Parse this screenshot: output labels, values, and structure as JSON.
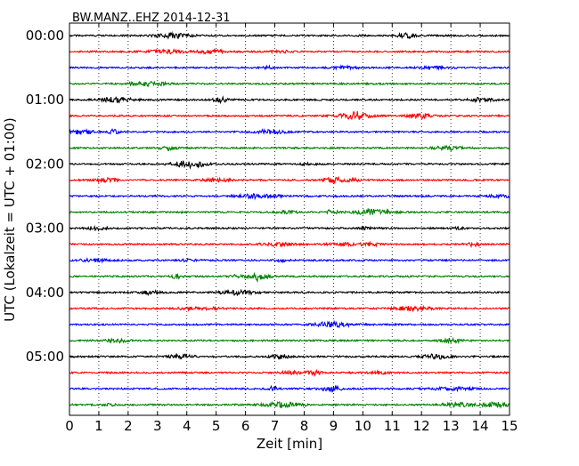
{
  "chart_data": {
    "type": "line",
    "title": "BW.MANZ..EHZ 2014-12-31",
    "xlabel": "Zeit  [min]",
    "ylabel": "UTC (Lokalzeit = UTC + 01:00)",
    "xlim": [
      0,
      15
    ],
    "x_ticks": [
      "0",
      "1",
      "2",
      "3",
      "4",
      "5",
      "6",
      "7",
      "8",
      "9",
      "10",
      "11",
      "12",
      "13",
      "14",
      "15"
    ],
    "y_ticks": [
      "00:00",
      "01:00",
      "02:00",
      "03:00",
      "04:00",
      "05:00"
    ],
    "grid": {
      "x": "dotted-vertical",
      "y": false
    },
    "colors": [
      "#000000",
      "#ff0000",
      "#0000ff",
      "#008000"
    ],
    "trace_interval_minutes": 15,
    "trace_count": 24,
    "traces_start": "00:00",
    "traces_end": "05:45",
    "series": [
      {
        "start": "00:00",
        "color": "#000000"
      },
      {
        "start": "00:15",
        "color": "#ff0000"
      },
      {
        "start": "00:30",
        "color": "#0000ff"
      },
      {
        "start": "00:45",
        "color": "#008000"
      },
      {
        "start": "01:00",
        "color": "#000000"
      },
      {
        "start": "01:15",
        "color": "#ff0000"
      },
      {
        "start": "01:30",
        "color": "#0000ff"
      },
      {
        "start": "01:45",
        "color": "#008000"
      },
      {
        "start": "02:00",
        "color": "#000000"
      },
      {
        "start": "02:15",
        "color": "#ff0000"
      },
      {
        "start": "02:30",
        "color": "#0000ff"
      },
      {
        "start": "02:45",
        "color": "#008000"
      },
      {
        "start": "03:00",
        "color": "#000000"
      },
      {
        "start": "03:15",
        "color": "#ff0000"
      },
      {
        "start": "03:30",
        "color": "#0000ff"
      },
      {
        "start": "03:45",
        "color": "#008000"
      },
      {
        "start": "04:00",
        "color": "#000000"
      },
      {
        "start": "04:15",
        "color": "#ff0000"
      },
      {
        "start": "04:30",
        "color": "#0000ff"
      },
      {
        "start": "04:45",
        "color": "#008000"
      },
      {
        "start": "05:00",
        "color": "#000000"
      },
      {
        "start": "05:15",
        "color": "#ff0000"
      },
      {
        "start": "05:30",
        "color": "#0000ff"
      },
      {
        "start": "05:45",
        "color": "#008000"
      }
    ]
  }
}
